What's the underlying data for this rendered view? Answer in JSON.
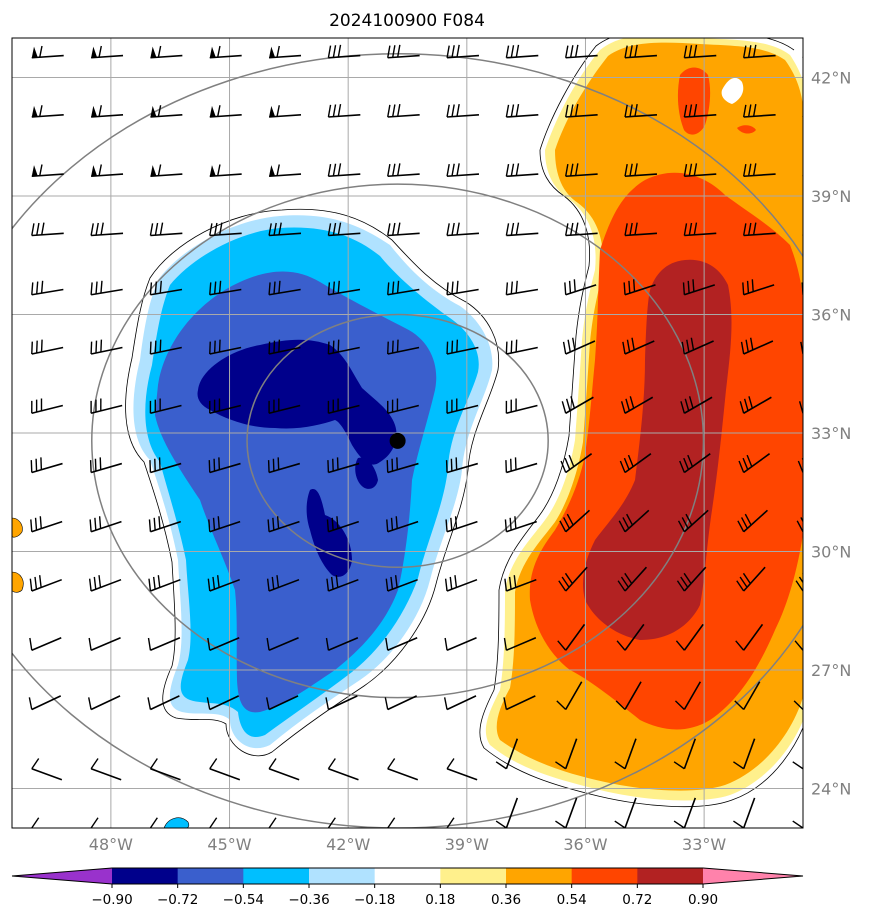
{
  "chart_data": {
    "type": "map-contour",
    "title": "2024100900 F084",
    "lon_range": [
      -50.5,
      -30.5
    ],
    "lat_range": [
      23.0,
      43.0
    ],
    "lon_ticks": [
      {
        "value": -48,
        "label": "48°W"
      },
      {
        "value": -45,
        "label": "45°W"
      },
      {
        "value": -42,
        "label": "42°W"
      },
      {
        "value": -39,
        "label": "39°W"
      },
      {
        "value": -36,
        "label": "36°W"
      },
      {
        "value": -33,
        "label": "33°W"
      }
    ],
    "lat_ticks": [
      {
        "value": 42,
        "label": "42°N"
      },
      {
        "value": 39,
        "label": "39°N"
      },
      {
        "value": 36,
        "label": "36°N"
      },
      {
        "value": 33,
        "label": "33°N"
      },
      {
        "value": 30,
        "label": "30°N"
      },
      {
        "value": 27,
        "label": "27°N"
      },
      {
        "value": 24,
        "label": "24°N"
      }
    ],
    "grid": true,
    "center_marker": {
      "lon": -40.75,
      "lat": 32.8
    },
    "range_rings_deg": [
      3.2,
      6.5,
      9.8
    ],
    "colorbar": {
      "orientation": "horizontal",
      "extend": "both",
      "levels": [
        "−0.90",
        "−0.72",
        "−0.54",
        "−0.36",
        "−0.18",
        "0.18",
        "0.36",
        "0.54",
        "0.72",
        "0.90"
      ],
      "colors": [
        "#9932cc",
        "#00008b",
        "#3a5fcd",
        "#00bfff",
        "#b0e2ff",
        "#ffffff",
        "#fff08c",
        "#ffa500",
        "#ff4500",
        "#b22222",
        "#ff82ab"
      ]
    },
    "negative_anomaly_center": {
      "lon": -42.5,
      "lat": 32.0
    },
    "positive_anomaly_center": {
      "lon": -34.5,
      "lat": 32.0
    }
  }
}
